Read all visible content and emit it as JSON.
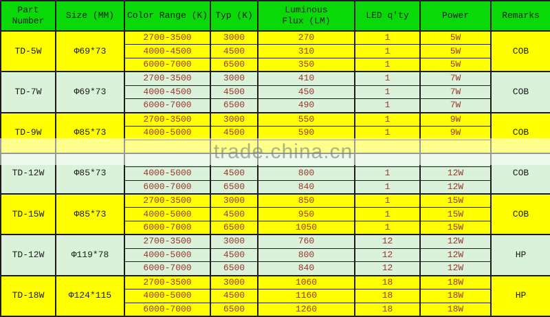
{
  "colors": {
    "header_bg": "#09d909",
    "yellow": "#ffff00",
    "green": "#d9f2d9",
    "grid": "#1a1a1a",
    "value_red": "#9c342a",
    "label_black": "#1b1b1b",
    "watermark_overlay": "rgba(255,255,255,0.55)",
    "watermark_text": "#74867c"
  },
  "watermark": {
    "text": "trade.china.cn"
  },
  "table": {
    "columns": [
      {
        "key": "part",
        "label": "Part Number"
      },
      {
        "key": "size",
        "label": "Size (MM)"
      },
      {
        "key": "range",
        "label": "Color Range (K)"
      },
      {
        "key": "typ",
        "label": "Typ (K)"
      },
      {
        "key": "flux",
        "label": "Luminous\nFlux (LM)"
      },
      {
        "key": "qty",
        "label": "LED q'ty"
      },
      {
        "key": "power",
        "label": "Power"
      },
      {
        "key": "remarks",
        "label": "Remarks"
      }
    ],
    "groups": [
      {
        "part": "TD-5W",
        "size": "Φ69*73",
        "remarks": "COB",
        "bg": "yellow",
        "rows": [
          {
            "range": "2700-3500",
            "typ": "3000",
            "flux": "270",
            "qty": "1",
            "power": "5W"
          },
          {
            "range": "4000-4500",
            "typ": "4500",
            "flux": "310",
            "qty": "1",
            "power": "5W"
          },
          {
            "range": "6000-7000",
            "typ": "6500",
            "flux": "350",
            "qty": "1",
            "power": "5W"
          }
        ]
      },
      {
        "part": "TD-7W",
        "size": "Φ69*73",
        "remarks": "COB",
        "bg": "green",
        "rows": [
          {
            "range": "2700-3500",
            "typ": "3000",
            "flux": "410",
            "qty": "1",
            "power": "7W"
          },
          {
            "range": "4000-4500",
            "typ": "4500",
            "flux": "450",
            "qty": "1",
            "power": "7W"
          },
          {
            "range": "6000-7000",
            "typ": "6500",
            "flux": "490",
            "qty": "1",
            "power": "7W"
          }
        ]
      },
      {
        "part": "TD-9W",
        "size": "Φ85*73",
        "remarks": "COB",
        "bg": "yellow",
        "rows": [
          {
            "range": "2700-3500",
            "typ": "3000",
            "flux": "550",
            "qty": "1",
            "power": "9W"
          },
          {
            "range": "4000-5000",
            "typ": "4500",
            "flux": "590",
            "qty": "1",
            "power": "9W"
          },
          {
            "range": "",
            "typ": "",
            "flux": "",
            "qty": "",
            "power": ""
          }
        ]
      },
      {
        "part": "TD-12W",
        "size": "Φ85*73",
        "remarks": "COB",
        "bg": "green",
        "rows": [
          {
            "range": "",
            "typ": "",
            "flux": "",
            "qty": "",
            "power": ""
          },
          {
            "range": "4000-5000",
            "typ": "4500",
            "flux": "800",
            "qty": "1",
            "power": "12W"
          },
          {
            "range": "6000-7000",
            "typ": "6500",
            "flux": "840",
            "qty": "1",
            "power": "12W"
          }
        ]
      },
      {
        "part": "TD-15W",
        "size": "Φ85*73",
        "remarks": "COB",
        "bg": "yellow",
        "rows": [
          {
            "range": "2700-3500",
            "typ": "3000",
            "flux": "850",
            "qty": "1",
            "power": "15W"
          },
          {
            "range": "4000-5000",
            "typ": "4500",
            "flux": "950",
            "qty": "1",
            "power": "15W"
          },
          {
            "range": "6000-7000",
            "typ": "6500",
            "flux": "1050",
            "qty": "1",
            "power": "15W"
          }
        ]
      },
      {
        "part": "TD-12W",
        "size": "Φ119*78",
        "remarks": "HP",
        "bg": "green",
        "rows": [
          {
            "range": "2700-3500",
            "typ": "3000",
            "flux": "760",
            "qty": "12",
            "power": "12W"
          },
          {
            "range": "4000-5000",
            "typ": "4500",
            "flux": "800",
            "qty": "12",
            "power": "12W"
          },
          {
            "range": "6000-7000",
            "typ": "6500",
            "flux": "840",
            "qty": "12",
            "power": "12W"
          }
        ]
      },
      {
        "part": "TD-18W",
        "size": "Φ124*115",
        "remarks": "HP",
        "bg": "yellow",
        "rows": [
          {
            "range": "2700-3500",
            "typ": "3000",
            "flux": "1060",
            "qty": "18",
            "power": "18W"
          },
          {
            "range": "4000-5000",
            "typ": "4500",
            "flux": "1160",
            "qty": "18",
            "power": "18W"
          },
          {
            "range": "6000-7000",
            "typ": "6500",
            "flux": "1260",
            "qty": "18",
            "power": "18W"
          }
        ]
      }
    ]
  },
  "chart_data": {
    "type": "table",
    "title": "LED downlight specification table",
    "columns": [
      "Part Number",
      "Size (MM)",
      "Color Range (K)",
      "Typ (K)",
      "Luminous Flux (LM)",
      "LED q'ty",
      "Power",
      "Remarks"
    ],
    "rows": [
      [
        "TD-5W",
        "Φ69*73",
        "2700-3500",
        "3000",
        "270",
        "1",
        "5W",
        "COB"
      ],
      [
        "TD-5W",
        "Φ69*73",
        "4000-4500",
        "4500",
        "310",
        "1",
        "5W",
        "COB"
      ],
      [
        "TD-5W",
        "Φ69*73",
        "6000-7000",
        "6500",
        "350",
        "1",
        "5W",
        "COB"
      ],
      [
        "TD-7W",
        "Φ69*73",
        "2700-3500",
        "3000",
        "410",
        "1",
        "7W",
        "COB"
      ],
      [
        "TD-7W",
        "Φ69*73",
        "4000-4500",
        "4500",
        "450",
        "1",
        "7W",
        "COB"
      ],
      [
        "TD-7W",
        "Φ69*73",
        "6000-7000",
        "6500",
        "490",
        "1",
        "7W",
        "COB"
      ],
      [
        "TD-9W",
        "Φ85*73",
        "2700-3500",
        "3000",
        "550",
        "1",
        "9W",
        "COB"
      ],
      [
        "TD-9W",
        "Φ85*73",
        "4000-5000",
        "4500",
        "590",
        "1",
        "9W",
        "COB"
      ],
      [
        "TD-12W",
        "Φ85*73",
        "4000-5000",
        "4500",
        "800",
        "1",
        "12W",
        "COB"
      ],
      [
        "TD-12W",
        "Φ85*73",
        "6000-7000",
        "6500",
        "840",
        "1",
        "12W",
        "COB"
      ],
      [
        "TD-15W",
        "Φ85*73",
        "2700-3500",
        "3000",
        "850",
        "1",
        "15W",
        "COB"
      ],
      [
        "TD-15W",
        "Φ85*73",
        "4000-5000",
        "4500",
        "950",
        "1",
        "15W",
        "COB"
      ],
      [
        "TD-15W",
        "Φ85*73",
        "6000-7000",
        "6500",
        "1050",
        "1",
        "15W",
        "COB"
      ],
      [
        "TD-12W",
        "Φ119*78",
        "2700-3500",
        "3000",
        "760",
        "12",
        "12W",
        "HP"
      ],
      [
        "TD-12W",
        "Φ119*78",
        "4000-5000",
        "4500",
        "800",
        "12",
        "12W",
        "HP"
      ],
      [
        "TD-12W",
        "Φ119*78",
        "6000-7000",
        "6500",
        "840",
        "12",
        "12W",
        "HP"
      ],
      [
        "TD-18W",
        "Φ124*115",
        "2700-3500",
        "3000",
        "1060",
        "18",
        "18W",
        "HP"
      ],
      [
        "TD-18W",
        "Φ124*115",
        "4000-5000",
        "4500",
        "1160",
        "18",
        "18W",
        "HP"
      ],
      [
        "TD-18W",
        "Φ124*115",
        "6000-7000",
        "6500",
        "1260",
        "18",
        "18W",
        "HP"
      ]
    ],
    "annotations": [
      "trade.china.cn watermark band obscures two table rows"
    ]
  }
}
